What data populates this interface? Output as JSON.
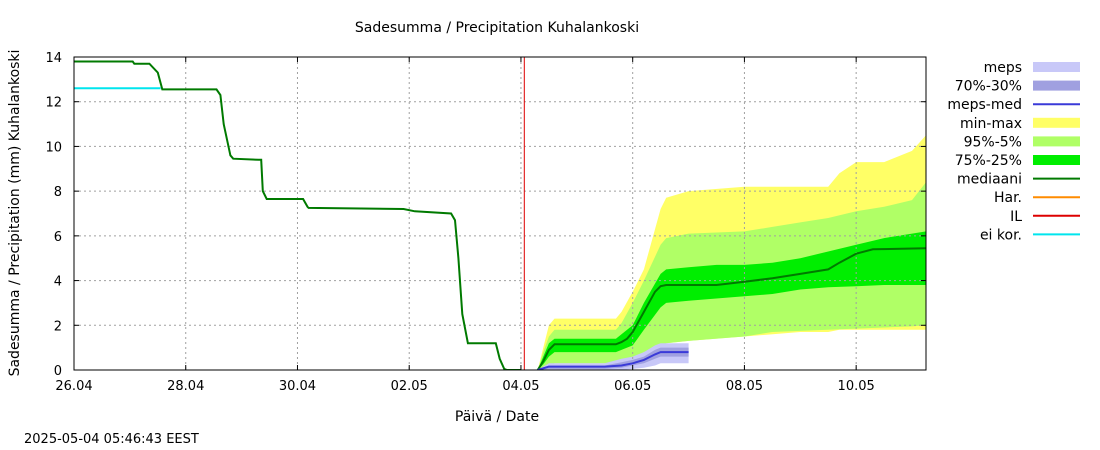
{
  "chart_data": {
    "type": "area",
    "title": "Sadesumma / Precipitation  Kuhalankoski",
    "xlabel": "Päivä / Date",
    "ylabel": "Sadesumma / Precipitation (mm)  Kuhalankoski",
    "x_unit": "days since 26.04",
    "xlim": [
      0,
      15.25
    ],
    "ylim": [
      0,
      14
    ],
    "grid": true,
    "x_ticks": [
      {
        "x": 0,
        "label": "26.04"
      },
      {
        "x": 2,
        "label": "28.04"
      },
      {
        "x": 4,
        "label": "30.04"
      },
      {
        "x": 6,
        "label": "02.05"
      },
      {
        "x": 8,
        "label": "04.05"
      },
      {
        "x": 10,
        "label": "06.05"
      },
      {
        "x": 12,
        "label": "08.05"
      },
      {
        "x": 14,
        "label": "10.05"
      }
    ],
    "y_ticks": [
      0,
      2,
      4,
      6,
      8,
      10,
      12,
      14
    ],
    "current_time_x": 8.06,
    "legend_position": "right",
    "legend": [
      {
        "label": "meps",
        "kind": "band",
        "color": "#c8c8f8"
      },
      {
        "label": "70%-30%",
        "kind": "band",
        "color": "#a0a0e0"
      },
      {
        "label": "meps-med",
        "kind": "line",
        "color": "#3a3ad8"
      },
      {
        "label": "min-max",
        "kind": "band",
        "color": "#ffff66"
      },
      {
        "label": "95%-5%",
        "kind": "band",
        "color": "#b0ff66"
      },
      {
        "label": "75%-25%",
        "kind": "band",
        "color": "#00ee00"
      },
      {
        "label": "mediaani",
        "kind": "line",
        "color": "#007a00"
      },
      {
        "label": "Har.",
        "kind": "line",
        "color": "#ff8c00"
      },
      {
        "label": "IL",
        "kind": "line",
        "color": "#dd0000"
      },
      {
        "label": "ei kor.",
        "kind": "line",
        "color": "#00e5ee"
      }
    ],
    "series": [
      {
        "name": "ei kor.",
        "color": "#00e5ee",
        "x": [
          0,
          1.55
        ],
        "y": [
          12.6,
          12.6
        ]
      },
      {
        "name": "mediaani (observed)",
        "color": "#007a00",
        "x": [
          0,
          1.05,
          1.08,
          1.35,
          1.5,
          1.58,
          2.55,
          2.62,
          2.68,
          2.8,
          2.85,
          3.3,
          3.35,
          3.38,
          3.45,
          4.1,
          4.18,
          4.2,
          5.9,
          6.1,
          6.75,
          6.82,
          6.88,
          6.95,
          7.05,
          7.55,
          7.62,
          7.7,
          7.75,
          8.0
        ],
        "y": [
          13.8,
          13.8,
          13.7,
          13.7,
          13.3,
          12.55,
          12.55,
          12.3,
          11.0,
          9.6,
          9.45,
          9.4,
          9.4,
          8.0,
          7.65,
          7.65,
          7.3,
          7.25,
          7.2,
          7.1,
          7.0,
          6.7,
          5.0,
          2.5,
          1.2,
          1.2,
          0.5,
          0.05,
          0,
          0
        ]
      },
      {
        "name": "mediaani (forecast)",
        "color": "#007a00",
        "x": [
          8.3,
          8.4,
          8.5,
          8.6,
          9.7,
          9.8,
          9.9,
          10.0,
          10.2,
          10.4,
          10.5,
          10.6,
          11.5,
          12.0,
          12.5,
          13.0,
          13.5,
          13.7,
          14.0,
          14.3,
          15.25
        ],
        "y": [
          0,
          0.4,
          0.9,
          1.15,
          1.15,
          1.25,
          1.4,
          1.7,
          2.6,
          3.5,
          3.75,
          3.8,
          3.8,
          3.95,
          4.1,
          4.3,
          4.5,
          4.8,
          5.2,
          5.4,
          5.45
        ]
      },
      {
        "name": "min-max",
        "color": "#ffff66",
        "x": [
          8.3,
          8.4,
          8.5,
          8.6,
          9.7,
          9.8,
          10.0,
          10.2,
          10.5,
          10.6,
          11.0,
          12.0,
          13.0,
          13.5,
          13.7,
          14.0,
          14.5,
          15.0,
          15.25
        ],
        "lower": [
          0,
          0.1,
          0.2,
          0.3,
          0.3,
          0.4,
          0.5,
          0.8,
          1.1,
          1.2,
          1.3,
          1.5,
          1.7,
          1.7,
          1.8,
          1.8,
          1.8,
          1.8,
          1.8
        ],
        "upper": [
          0,
          1.0,
          2.0,
          2.3,
          2.3,
          2.6,
          3.5,
          4.5,
          7.2,
          7.7,
          8.0,
          8.2,
          8.2,
          8.2,
          8.8,
          9.3,
          9.3,
          9.8,
          10.5
        ]
      },
      {
        "name": "95%-5%",
        "color": "#b0ff66",
        "x": [
          8.3,
          8.4,
          8.5,
          8.6,
          9.7,
          9.8,
          10.0,
          10.2,
          10.5,
          10.6,
          11.0,
          12.0,
          12.5,
          13.0,
          13.5,
          14.0,
          14.5,
          15.0,
          15.25
        ],
        "lower": [
          0,
          0.1,
          0.2,
          0.3,
          0.3,
          0.4,
          0.5,
          0.8,
          1.1,
          1.2,
          1.3,
          1.5,
          1.7,
          1.75,
          1.8,
          1.85,
          1.9,
          1.95,
          2.0
        ],
        "upper": [
          0,
          0.8,
          1.5,
          1.8,
          1.8,
          2.1,
          3.0,
          4.0,
          5.6,
          5.9,
          6.1,
          6.2,
          6.4,
          6.6,
          6.8,
          7.1,
          7.3,
          7.6,
          8.4
        ]
      },
      {
        "name": "75%-25%",
        "color": "#00ee00",
        "x": [
          8.3,
          8.4,
          8.5,
          8.6,
          9.7,
          9.8,
          10.0,
          10.2,
          10.5,
          10.6,
          11.0,
          11.5,
          12.0,
          12.5,
          13.0,
          13.5,
          14.0,
          14.5,
          15.0,
          15.25
        ],
        "lower": [
          0,
          0.25,
          0.6,
          0.8,
          0.8,
          0.9,
          1.1,
          1.8,
          2.8,
          3.0,
          3.1,
          3.2,
          3.3,
          3.4,
          3.6,
          3.7,
          3.75,
          3.8,
          3.8,
          3.8
        ],
        "upper": [
          0,
          0.6,
          1.2,
          1.4,
          1.4,
          1.6,
          2.0,
          3.0,
          4.3,
          4.5,
          4.6,
          4.7,
          4.7,
          4.8,
          5.0,
          5.3,
          5.6,
          5.9,
          6.1,
          6.2
        ]
      },
      {
        "name": "meps",
        "color": "#c8c8f8",
        "x": [
          8.3,
          8.5,
          9.5,
          9.8,
          10.0,
          10.2,
          10.4,
          10.5,
          11.0
        ],
        "lower": [
          0,
          0,
          0,
          0,
          0.05,
          0.1,
          0.2,
          0.3,
          0.3
        ],
        "upper": [
          0,
          0.3,
          0.3,
          0.5,
          0.6,
          0.8,
          1.1,
          1.2,
          1.2
        ]
      },
      {
        "name": "70%-30%",
        "color": "#a0a0e0",
        "x": [
          8.3,
          8.5,
          9.5,
          9.8,
          10.0,
          10.2,
          10.4,
          10.5,
          11.0
        ],
        "lower": [
          0,
          0.05,
          0.05,
          0.1,
          0.2,
          0.3,
          0.5,
          0.6,
          0.6
        ],
        "upper": [
          0,
          0.2,
          0.2,
          0.35,
          0.45,
          0.6,
          0.9,
          1.0,
          1.0
        ]
      },
      {
        "name": "meps-med",
        "color": "#3a3ad8",
        "x": [
          8.3,
          8.5,
          9.5,
          9.8,
          10.0,
          10.2,
          10.4,
          10.5,
          11.0
        ],
        "y": [
          0,
          0.15,
          0.15,
          0.2,
          0.3,
          0.45,
          0.7,
          0.8,
          0.8
        ]
      }
    ]
  },
  "timestamp": "2025-05-04 05:46:43 EEST"
}
